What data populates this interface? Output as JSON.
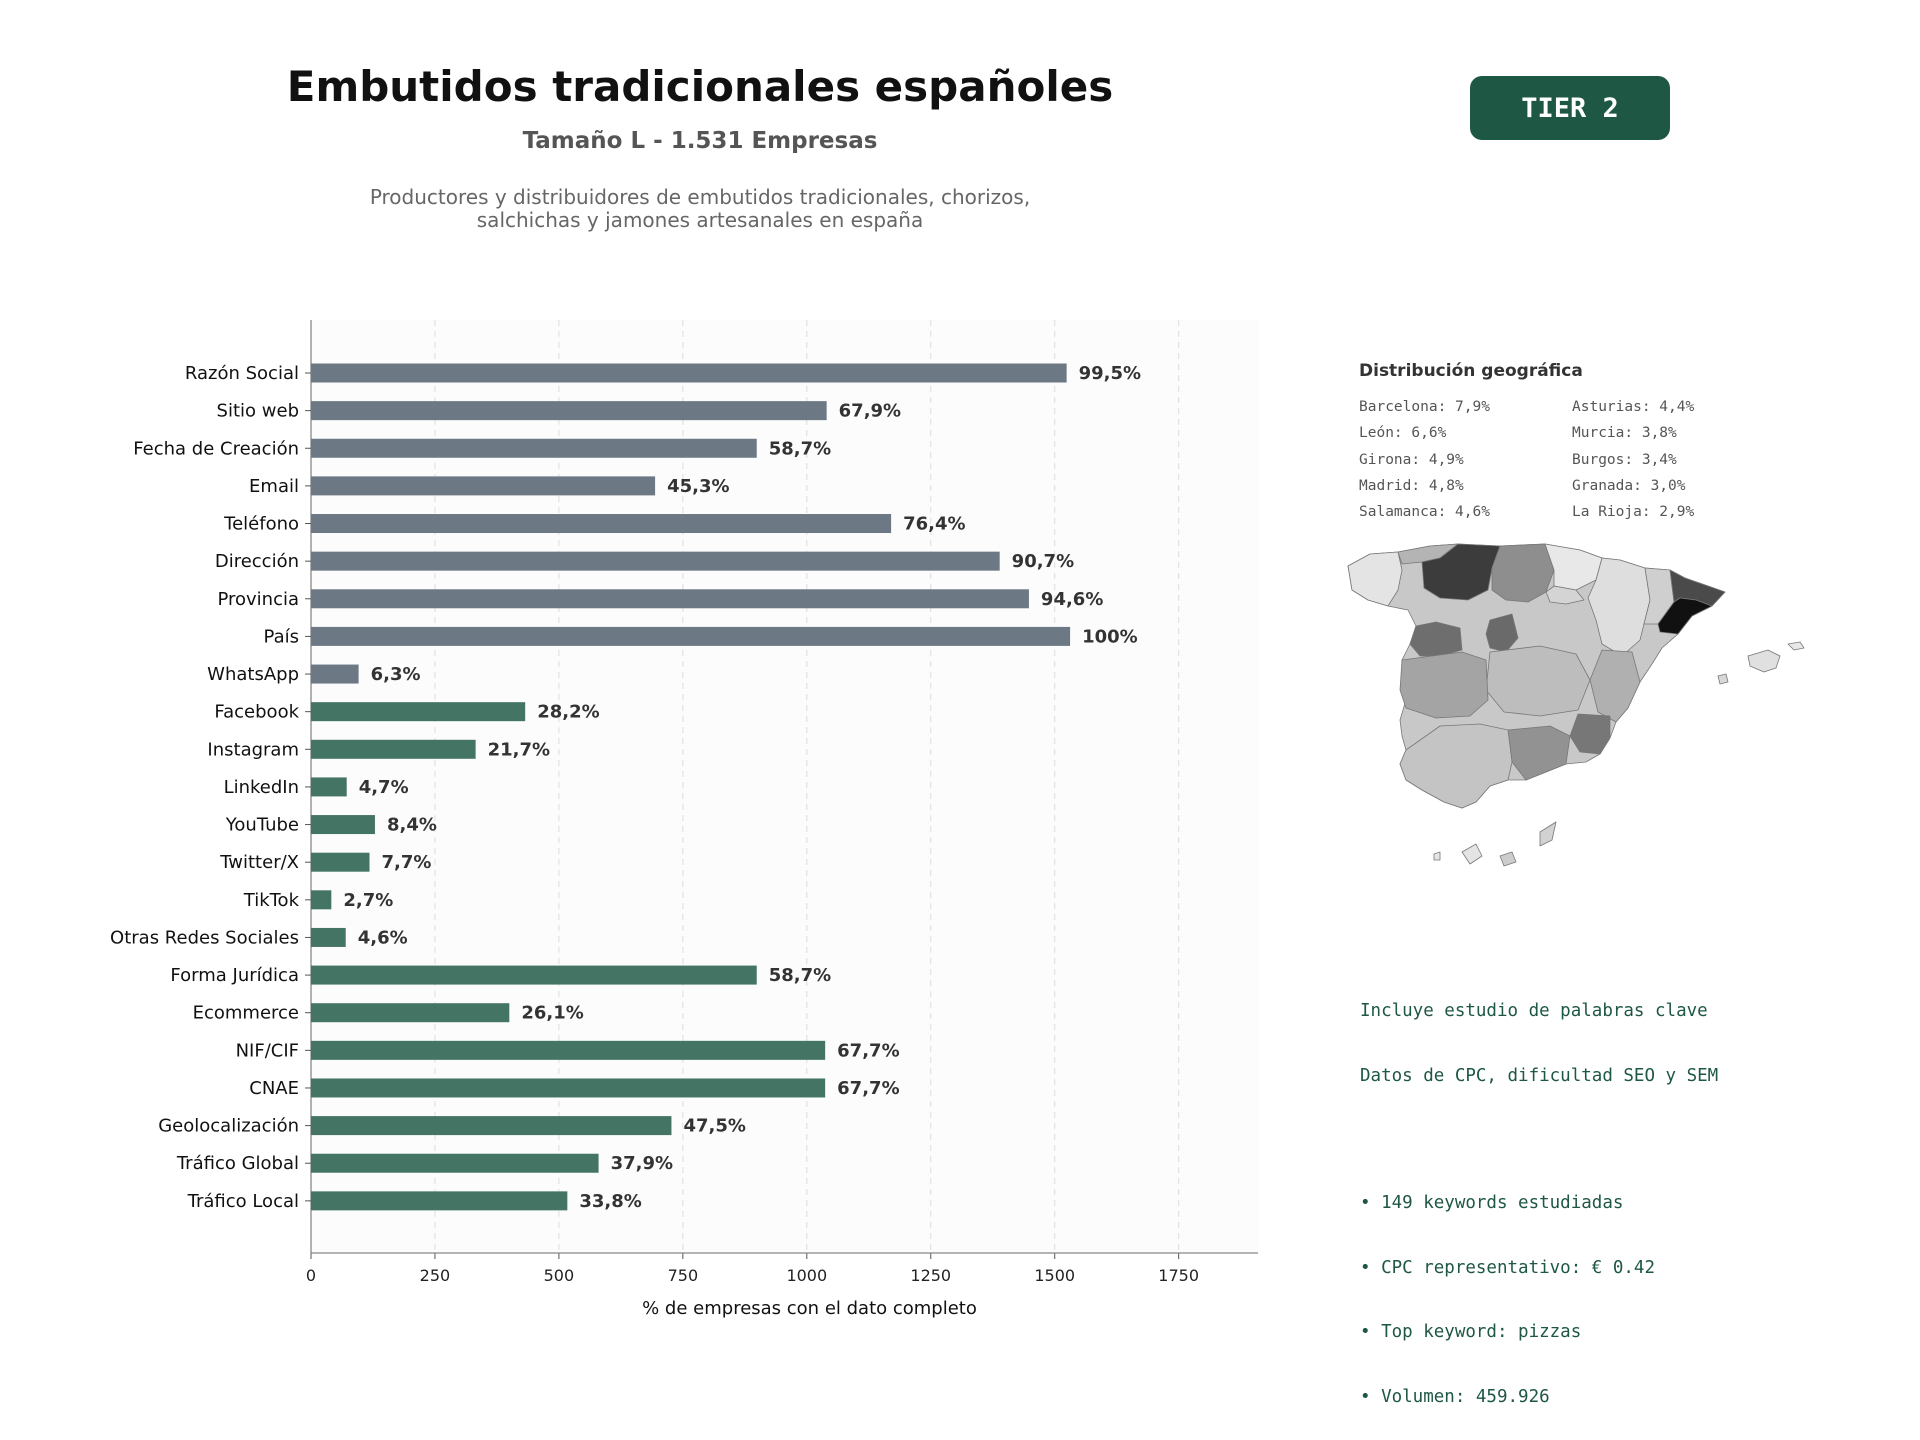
{
  "header": {
    "title": "Embutidos tradicionales españoles",
    "subtitle": "Tamaño L - 1.531 Empresas",
    "description_line1": "Productores y distribuidores de embutidos tradicionales, chorizos,",
    "description_line2": "salchichas y jamones artesanales en españa",
    "tier_badge": "TIER 2"
  },
  "colors": {
    "gray_bar": "#6c7883",
    "green_bar": "#447463",
    "accent": "#1e5744",
    "plot_bg": "#fcfcfc"
  },
  "chart_data": {
    "type": "bar",
    "orientation": "horizontal",
    "xlabel": "% de empresas con el dato completo",
    "xlim": [
      0,
      1910
    ],
    "xticks": [
      0,
      250,
      500,
      750,
      1000,
      1250,
      1500,
      1750
    ],
    "grid": "vertical dashed",
    "categories": [
      "Razón Social",
      "Sitio web",
      "Fecha de Creación",
      "Email",
      "Teléfono",
      "Dirección",
      "Provincia",
      "País",
      "WhatsApp",
      "Facebook",
      "Instagram",
      "LinkedIn",
      "YouTube",
      "Twitter/X",
      "TikTok",
      "Otras Redes Sociales",
      "Forma Jurídica",
      "Ecommerce",
      "NIF/CIF",
      "CNAE",
      "Geolocalización",
      "Tráfico Global",
      "Tráfico Local"
    ],
    "values": [
      1524,
      1040,
      899,
      694,
      1170,
      1389,
      1448,
      1531,
      96,
      432,
      332,
      72,
      129,
      118,
      41,
      70,
      899,
      400,
      1037,
      1037,
      727,
      580,
      517
    ],
    "labels": [
      "99,5%",
      "67,9%",
      "58,7%",
      "45,3%",
      "76,4%",
      "90,7%",
      "94,6%",
      "100%",
      "6,3%",
      "28,2%",
      "21,7%",
      "4,7%",
      "8,4%",
      "7,7%",
      "2,7%",
      "4,6%",
      "58,7%",
      "26,1%",
      "67,7%",
      "67,7%",
      "47,5%",
      "37,9%",
      "33,8%"
    ],
    "color_groups": [
      "gray",
      "gray",
      "gray",
      "gray",
      "gray",
      "gray",
      "gray",
      "gray",
      "gray",
      "green",
      "green",
      "green",
      "green",
      "green",
      "green",
      "green",
      "green",
      "green",
      "green",
      "green",
      "green",
      "green",
      "green"
    ]
  },
  "geo": {
    "title": "Distribución geográfica",
    "regions": [
      "Barcelona: 7,9%",
      "Asturias: 4,4%",
      "León: 6,6%",
      "Murcia: 3,8%",
      "Girona: 4,9%",
      "Burgos: 3,4%",
      "Madrid: 4,8%",
      "Granada: 3,0%",
      "Salamanca: 4,6%",
      "La Rioja: 2,9%"
    ]
  },
  "keywords": {
    "line1": "Incluye estudio de palabras clave",
    "line2": "Datos de CPC, dificultad SEO y SEM",
    "bullets": [
      "• 149 keywords estudiadas",
      "• CPC representativo: € 0.42",
      "• Top keyword: pizzas",
      "• Volumen: 459.926"
    ]
  }
}
